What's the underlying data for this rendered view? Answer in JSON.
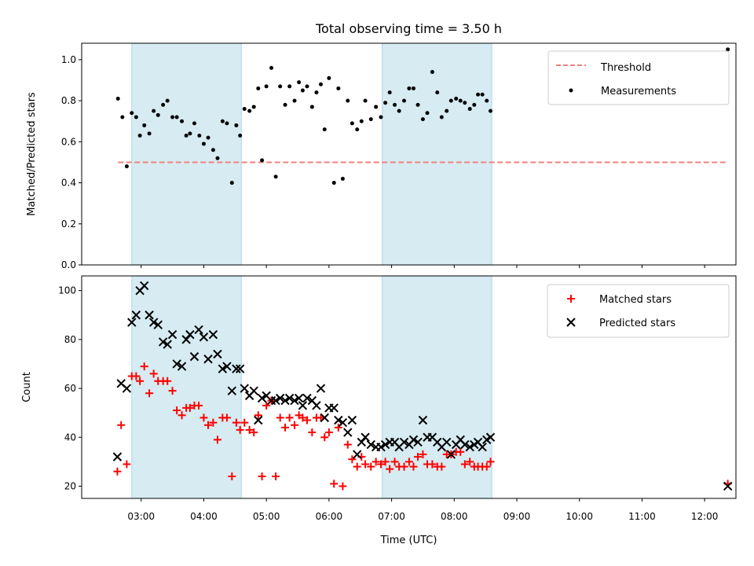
{
  "chart_data": [
    {
      "type": "scatter",
      "title": "Total observing time = 3.50 h",
      "xlabel": "",
      "ylabel": "Matched/Predicted stars",
      "ylim": [
        0,
        1.08
      ],
      "yticks": [
        "0.0",
        "0.2",
        "0.4",
        "0.6",
        "0.8",
        "1.0"
      ],
      "ytick_values": [
        0,
        0.2,
        0.4,
        0.6,
        0.8,
        1.0
      ],
      "legend": {
        "position": "top-right",
        "entries": [
          "Threshold",
          "Measurements"
        ]
      },
      "threshold": {
        "name": "Threshold",
        "value": 0.5,
        "x_start": 2.63,
        "x_end": 12.37,
        "color": "#f08080"
      },
      "series": [
        {
          "name": "Measurements",
          "color": "#000000",
          "x": [
            2.63,
            2.7,
            2.77,
            2.85,
            2.92,
            2.98,
            3.05,
            3.13,
            3.2,
            3.27,
            3.35,
            3.42,
            3.5,
            3.57,
            3.65,
            3.72,
            3.78,
            3.85,
            3.93,
            4.0,
            4.07,
            4.15,
            4.22,
            4.3,
            4.37,
            4.45,
            4.52,
            4.58,
            4.65,
            4.73,
            4.8,
            4.87,
            4.93,
            5.0,
            5.08,
            5.15,
            5.22,
            5.3,
            5.37,
            5.45,
            5.52,
            5.58,
            5.65,
            5.73,
            5.8,
            5.87,
            5.93,
            6.0,
            6.08,
            6.15,
            6.22,
            6.3,
            6.37,
            6.45,
            6.52,
            6.58,
            6.67,
            6.75,
            6.83,
            6.9,
            6.97,
            7.05,
            7.12,
            7.2,
            7.28,
            7.35,
            7.42,
            7.5,
            7.57,
            7.65,
            7.73,
            7.8,
            7.88,
            7.95,
            8.03,
            8.1,
            8.17,
            8.25,
            8.32,
            8.38,
            8.45,
            8.52,
            8.58,
            12.37
          ],
          "y": [
            0.81,
            0.72,
            0.48,
            0.74,
            0.72,
            0.63,
            0.68,
            0.64,
            0.75,
            0.73,
            0.78,
            0.8,
            0.72,
            0.72,
            0.7,
            0.63,
            0.64,
            0.69,
            0.63,
            0.59,
            0.62,
            0.56,
            0.52,
            0.7,
            0.69,
            0.4,
            0.68,
            0.63,
            0.76,
            0.75,
            0.77,
            0.86,
            0.51,
            0.87,
            0.96,
            0.43,
            0.87,
            0.78,
            0.87,
            0.8,
            0.89,
            0.85,
            0.87,
            0.77,
            0.84,
            0.88,
            0.66,
            0.91,
            0.4,
            0.86,
            0.42,
            0.8,
            0.69,
            0.66,
            0.7,
            0.8,
            0.71,
            0.77,
            0.72,
            0.79,
            0.84,
            0.78,
            0.75,
            0.8,
            0.86,
            0.86,
            0.78,
            0.71,
            0.74,
            0.94,
            0.84,
            0.72,
            0.75,
            0.8,
            0.81,
            0.8,
            0.79,
            0.76,
            0.78,
            0.83,
            0.83,
            0.8,
            0.75,
            1.05
          ]
        }
      ],
      "shaded_regions": [
        [
          2.85,
          4.6
        ],
        [
          6.85,
          8.6
        ]
      ],
      "shade_color": "#add8e6"
    },
    {
      "type": "scatter",
      "title": "",
      "xlabel": "Time (UTC)",
      "ylabel": "Count",
      "xlim": [
        2.05,
        12.5
      ],
      "ylim": [
        15,
        106
      ],
      "xticks": [
        "03:00",
        "04:00",
        "05:00",
        "06:00",
        "07:00",
        "08:00",
        "09:00",
        "10:00",
        "11:00",
        "12:00"
      ],
      "xtick_values": [
        3,
        4,
        5,
        6,
        7,
        8,
        9,
        10,
        11,
        12
      ],
      "yticks": [
        "20",
        "40",
        "60",
        "80",
        "100"
      ],
      "ytick_values": [
        20,
        40,
        60,
        80,
        100
      ],
      "legend": {
        "position": "top-right",
        "entries": [
          "Matched stars",
          "Predicted stars"
        ]
      },
      "series": [
        {
          "name": "Matched stars",
          "color": "#ff0000",
          "x": [
            2.62,
            2.68,
            2.77,
            2.85,
            2.92,
            2.98,
            3.05,
            3.13,
            3.2,
            3.27,
            3.35,
            3.42,
            3.5,
            3.57,
            3.65,
            3.72,
            3.78,
            3.85,
            3.92,
            4.0,
            4.07,
            4.15,
            4.22,
            4.3,
            4.37,
            4.45,
            4.52,
            4.58,
            4.65,
            4.73,
            4.8,
            4.87,
            4.93,
            5.0,
            5.08,
            5.15,
            5.22,
            5.3,
            5.37,
            5.45,
            5.52,
            5.58,
            5.65,
            5.73,
            5.8,
            5.87,
            5.93,
            6.0,
            6.08,
            6.15,
            6.22,
            6.3,
            6.37,
            6.45,
            6.52,
            6.58,
            6.67,
            6.75,
            6.83,
            6.9,
            6.97,
            7.05,
            7.12,
            7.2,
            7.28,
            7.35,
            7.42,
            7.5,
            7.57,
            7.65,
            7.73,
            7.8,
            7.88,
            7.95,
            8.03,
            8.1,
            8.17,
            8.25,
            8.32,
            8.38,
            8.45,
            8.52,
            8.58,
            12.37
          ],
          "y": [
            26,
            45,
            29,
            65,
            65,
            63,
            69,
            58,
            66,
            63,
            63,
            63,
            59,
            51,
            49,
            52,
            52,
            53,
            53,
            48,
            45,
            46,
            39,
            48,
            48,
            24,
            46,
            43,
            46,
            43,
            42,
            49,
            24,
            53,
            55,
            24,
            48,
            44,
            48,
            45,
            49,
            48,
            47,
            42,
            48,
            48,
            40,
            42,
            21,
            44,
            20,
            37,
            31,
            28,
            32,
            29,
            28,
            30,
            29,
            30,
            27,
            30,
            28,
            28,
            30,
            28,
            32,
            33,
            29,
            29,
            28,
            28,
            33,
            33,
            34,
            34,
            29,
            30,
            28,
            28,
            28,
            28,
            30,
            21
          ]
        },
        {
          "name": "Predicted stars",
          "color": "#000000",
          "x": [
            2.62,
            2.68,
            2.77,
            2.85,
            2.92,
            2.98,
            3.05,
            3.13,
            3.2,
            3.27,
            3.35,
            3.42,
            3.5,
            3.57,
            3.65,
            3.72,
            3.78,
            3.85,
            3.92,
            4.0,
            4.07,
            4.15,
            4.22,
            4.3,
            4.37,
            4.45,
            4.52,
            4.58,
            4.65,
            4.73,
            4.8,
            4.87,
            4.93,
            5.0,
            5.08,
            5.15,
            5.22,
            5.3,
            5.37,
            5.45,
            5.52,
            5.58,
            5.65,
            5.73,
            5.8,
            5.87,
            5.93,
            6.0,
            6.08,
            6.15,
            6.22,
            6.3,
            6.37,
            6.45,
            6.52,
            6.58,
            6.67,
            6.75,
            6.83,
            6.9,
            6.97,
            7.05,
            7.12,
            7.2,
            7.28,
            7.35,
            7.42,
            7.5,
            7.57,
            7.65,
            7.73,
            7.8,
            7.88,
            7.95,
            8.03,
            8.1,
            8.17,
            8.25,
            8.32,
            8.38,
            8.45,
            8.52,
            8.58,
            12.37
          ],
          "y": [
            32,
            62,
            60,
            87,
            90,
            100,
            102,
            90,
            87,
            86,
            79,
            78,
            82,
            70,
            69,
            80,
            82,
            73,
            84,
            81,
            72,
            82,
            74,
            68,
            69,
            59,
            68,
            68,
            60,
            57,
            59,
            47,
            56,
            57,
            55,
            55,
            56,
            55,
            56,
            55,
            56,
            53,
            56,
            55,
            53,
            60,
            48,
            52,
            52,
            47,
            46,
            42,
            47,
            33,
            38,
            40,
            37,
            36,
            36,
            37,
            38,
            38,
            36,
            38,
            37,
            39,
            38,
            47,
            40,
            40,
            38,
            36,
            38,
            33,
            37,
            39,
            37,
            36,
            37,
            38,
            36,
            39,
            40,
            20
          ]
        }
      ],
      "shaded_regions": [
        [
          2.85,
          4.6
        ],
        [
          6.85,
          8.6
        ]
      ],
      "shade_color": "#add8e6"
    }
  ]
}
